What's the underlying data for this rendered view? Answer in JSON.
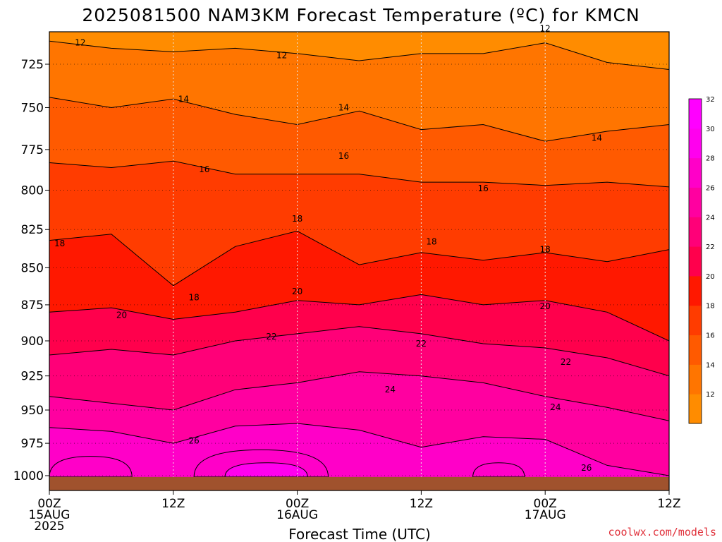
{
  "chart_data": {
    "type": "heatmap",
    "title": "2025081500 NAM3KM Forecast Temperature (ºC) for KMCN",
    "xlabel": "Forecast Time (UTC)",
    "ylabel": "",
    "x_ticks": [
      {
        "hour": 0,
        "line1": "00Z",
        "line2": "15AUG",
        "line3": "2025"
      },
      {
        "hour": 12,
        "line1": "12Z",
        "line2": "",
        "line3": ""
      },
      {
        "hour": 24,
        "line1": "00Z",
        "line2": "16AUG",
        "line3": ""
      },
      {
        "hour": 36,
        "line1": "12Z",
        "line2": "",
        "line3": ""
      },
      {
        "hour": 48,
        "line1": "00Z",
        "line2": "17AUG",
        "line3": ""
      },
      {
        "hour": 60,
        "line1": "12Z",
        "line2": "",
        "line3": ""
      }
    ],
    "xlim": [
      0,
      60
    ],
    "y_ticks": [
      725,
      750,
      775,
      800,
      825,
      850,
      875,
      900,
      925,
      950,
      975,
      1000
    ],
    "ylim": [
      1010,
      700
    ],
    "y_scale": "log-pressure",
    "grid": true,
    "surface_pressure": 1001,
    "contour_levels": [
      12,
      14,
      16,
      18,
      20,
      22,
      24,
      26
    ],
    "colorbar_ticks": [
      12,
      14,
      16,
      18,
      20,
      22,
      24,
      26,
      28,
      30,
      32
    ],
    "colors": [
      "#ff8c00",
      "#ff7500",
      "#ff5a00",
      "#ff3c00",
      "#ff1800",
      "#ff004c",
      "#ff0078",
      "#ff00a0",
      "#ff00c8",
      "#ff00ee",
      "#ff00ff"
    ],
    "ground_color": "#a0522d",
    "isotherms": [
      {
        "value": 12,
        "hours": [
          0,
          6,
          12,
          18,
          24,
          30,
          36,
          42,
          48,
          54,
          60
        ],
        "pressures": [
          712,
          716,
          718,
          716,
          719,
          723,
          719,
          719,
          713,
          724,
          728
        ]
      },
      {
        "value": 14,
        "hours": [
          0,
          6,
          12,
          18,
          24,
          30,
          36,
          42,
          48,
          54,
          60
        ],
        "pressures": [
          744,
          750,
          745,
          754,
          760,
          752,
          763,
          760,
          770,
          764,
          760
        ]
      },
      {
        "value": 16,
        "hours": [
          0,
          6,
          12,
          18,
          24,
          30,
          36,
          42,
          48,
          54,
          60
        ],
        "pressures": [
          783,
          786,
          782,
          790,
          790,
          790,
          795,
          795,
          797,
          795,
          798
        ]
      },
      {
        "value": 18,
        "hours": [
          0,
          6,
          12,
          18,
          24,
          30,
          36,
          42,
          48,
          54,
          60
        ],
        "pressures": [
          832,
          828,
          862,
          836,
          826,
          848,
          840,
          845,
          840,
          846,
          838
        ]
      },
      {
        "value": 20,
        "hours": [
          0,
          6,
          12,
          18,
          24,
          30,
          36,
          42,
          48,
          54,
          60
        ],
        "pressures": [
          880,
          877,
          885,
          880,
          872,
          875,
          868,
          875,
          872,
          880,
          900
        ]
      },
      {
        "value": 22,
        "hours": [
          0,
          6,
          12,
          18,
          24,
          30,
          36,
          42,
          48,
          54,
          60
        ],
        "pressures": [
          910,
          906,
          910,
          900,
          895,
          890,
          895,
          902,
          905,
          912,
          925
        ]
      },
      {
        "value": 24,
        "hours": [
          0,
          6,
          12,
          18,
          24,
          30,
          36,
          42,
          48,
          54,
          60
        ],
        "pressures": [
          940,
          945,
          950,
          935,
          930,
          922,
          925,
          930,
          940,
          948,
          958
        ]
      },
      {
        "value": 26,
        "hours": [
          0,
          6,
          12,
          18,
          24,
          30,
          36,
          42,
          48,
          54,
          60
        ],
        "pressures": [
          963,
          966,
          975,
          962,
          960,
          965,
          978,
          970,
          972,
          992,
          1000
        ]
      }
    ],
    "contour_labels": [
      {
        "text": "12",
        "hour": 3,
        "pressure": 713
      },
      {
        "text": "12",
        "hour": 22.5,
        "pressure": 720
      },
      {
        "text": "12",
        "hour": 48,
        "pressure": 705
      },
      {
        "text": "14",
        "hour": 13,
        "pressure": 745
      },
      {
        "text": "14",
        "hour": 28.5,
        "pressure": 750
      },
      {
        "text": "14",
        "hour": 53,
        "pressure": 768
      },
      {
        "text": "16",
        "hour": 15,
        "pressure": 787
      },
      {
        "text": "16",
        "hour": 28.5,
        "pressure": 779
      },
      {
        "text": "16",
        "hour": 42,
        "pressure": 799
      },
      {
        "text": "18",
        "hour": 1,
        "pressure": 834
      },
      {
        "text": "18",
        "hour": 24,
        "pressure": 818
      },
      {
        "text": "18",
        "hour": 37,
        "pressure": 833
      },
      {
        "text": "18",
        "hour": 48,
        "pressure": 838
      },
      {
        "text": "18",
        "hour": 14,
        "pressure": 870
      },
      {
        "text": "20",
        "hour": 7,
        "pressure": 882
      },
      {
        "text": "20",
        "hour": 24,
        "pressure": 866
      },
      {
        "text": "20",
        "hour": 48,
        "pressure": 876
      },
      {
        "text": "22",
        "hour": 21.5,
        "pressure": 897
      },
      {
        "text": "22",
        "hour": 36,
        "pressure": 902
      },
      {
        "text": "22",
        "hour": 50,
        "pressure": 915
      },
      {
        "text": "24",
        "hour": 33,
        "pressure": 935
      },
      {
        "text": "24",
        "hour": 49,
        "pressure": 948
      },
      {
        "text": "26",
        "hour": 14,
        "pressure": 973
      },
      {
        "text": "26",
        "hour": 52,
        "pressure": 994
      }
    ],
    "credit": "coolwx.com/models"
  }
}
